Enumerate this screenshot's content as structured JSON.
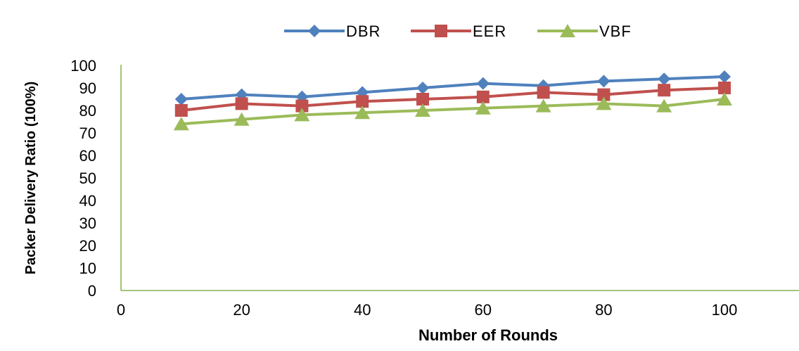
{
  "chart_data": {
    "type": "line",
    "xlabel": "Number of Rounds",
    "ylabel": "Packer Delivery Ratio (100%)",
    "xlim": [
      0,
      110
    ],
    "ylim": [
      0,
      100
    ],
    "x_ticks": [
      0,
      20,
      40,
      60,
      80,
      100
    ],
    "y_ticks": [
      0,
      10,
      20,
      30,
      40,
      50,
      60,
      70,
      80,
      90,
      100
    ],
    "x_tick_labels": [
      "0",
      "20",
      "40",
      "60",
      "80",
      "100"
    ],
    "y_tick_labels": [
      "0",
      "10",
      "20",
      "30",
      "40",
      "50",
      "60",
      "70",
      "80",
      "90",
      "100"
    ],
    "grid": false,
    "legend_position": "top",
    "x": [
      10,
      20,
      30,
      40,
      50,
      60,
      70,
      80,
      90,
      100
    ],
    "series": [
      {
        "name": "DBR",
        "color": "#4F81BD",
        "marker": "diamond",
        "values": [
          85,
          87,
          86,
          88,
          90,
          92,
          91,
          93,
          94,
          95
        ]
      },
      {
        "name": "EER",
        "color": "#C0504D",
        "marker": "square",
        "values": [
          80,
          83,
          82,
          84,
          85,
          86,
          88,
          87,
          89,
          90
        ]
      },
      {
        "name": "VBF",
        "color": "#9BBB59",
        "marker": "triangle",
        "values": [
          74,
          76,
          78,
          79,
          80,
          81,
          82,
          83,
          82,
          85
        ]
      }
    ]
  }
}
